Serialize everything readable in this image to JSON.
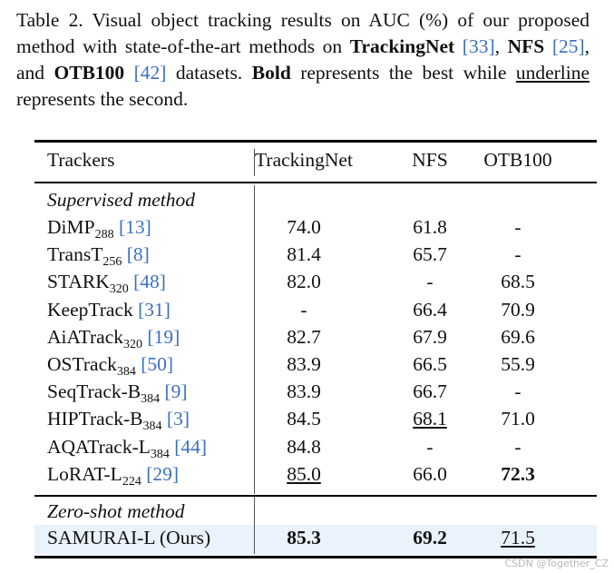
{
  "caption": {
    "p1": "Table 2.  Visual object tracking results on AUC (%) of our proposed method with state-of-the-art methods on ",
    "trackingnet": "TrackingNet",
    "cite_tn": "[33]",
    "sep1": ", ",
    "nfs": "NFS",
    "cite_nfs": "[25]",
    "sep2": ", and ",
    "otb": "OTB100",
    "cite_otb": "[42]",
    "p2": " datasets. ",
    "bold_word": "Bold",
    "p3": " represents the best while ",
    "underline_word": "underline",
    "p4": " represents the second."
  },
  "table": {
    "headers": {
      "trackers": "Trackers",
      "tn": "TrackingNet",
      "nfs": "NFS",
      "otb": "OTB100"
    },
    "section_supervised": "Supervised method",
    "section_zeroshot": "Zero-shot method",
    "rows": [
      {
        "name": "DiMP",
        "sub": "288",
        "cite": "[13]",
        "tn": "74.0",
        "nfs": "61.8",
        "otb": "-"
      },
      {
        "name": "TransT",
        "sub": "256",
        "cite": "[8]",
        "tn": "81.4",
        "nfs": "65.7",
        "otb": "-"
      },
      {
        "name": "STARK",
        "sub": "320",
        "cite": "[48]",
        "tn": "82.0",
        "nfs": "-",
        "otb": "68.5"
      },
      {
        "name": "KeepTrack",
        "sub": "",
        "cite": "[31]",
        "tn": "-",
        "nfs": "66.4",
        "otb": "70.9"
      },
      {
        "name": "AiATrack",
        "sub": "320",
        "cite": "[19]",
        "tn": "82.7",
        "nfs": "67.9",
        "otb": "69.6"
      },
      {
        "name": "OSTrack",
        "sub": "384",
        "cite": "[50]",
        "tn": "83.9",
        "nfs": "66.5",
        "otb": "55.9"
      },
      {
        "name": "SeqTrack-B",
        "sub": "384",
        "cite": "[9]",
        "tn": "83.9",
        "nfs": "66.7",
        "otb": "-"
      },
      {
        "name": "HIPTrack-B",
        "sub": "384",
        "cite": "[3]",
        "tn": "84.5",
        "nfs": "68.1",
        "otb": "71.0"
      },
      {
        "name": "AQATrack-L",
        "sub": "384",
        "cite": "[44]",
        "tn": "84.8",
        "nfs": "-",
        "otb": "-"
      },
      {
        "name": "LoRAT-L",
        "sub": "224",
        "cite": "[29]",
        "tn": "85.0",
        "nfs": "66.0",
        "otb": "72.3"
      }
    ],
    "ours": {
      "name": "SAMURAI-L (Ours)",
      "tn": "85.3",
      "nfs": "69.2",
      "otb": "71.5"
    }
  },
  "watermark": "CSDN @Together_CZ"
}
